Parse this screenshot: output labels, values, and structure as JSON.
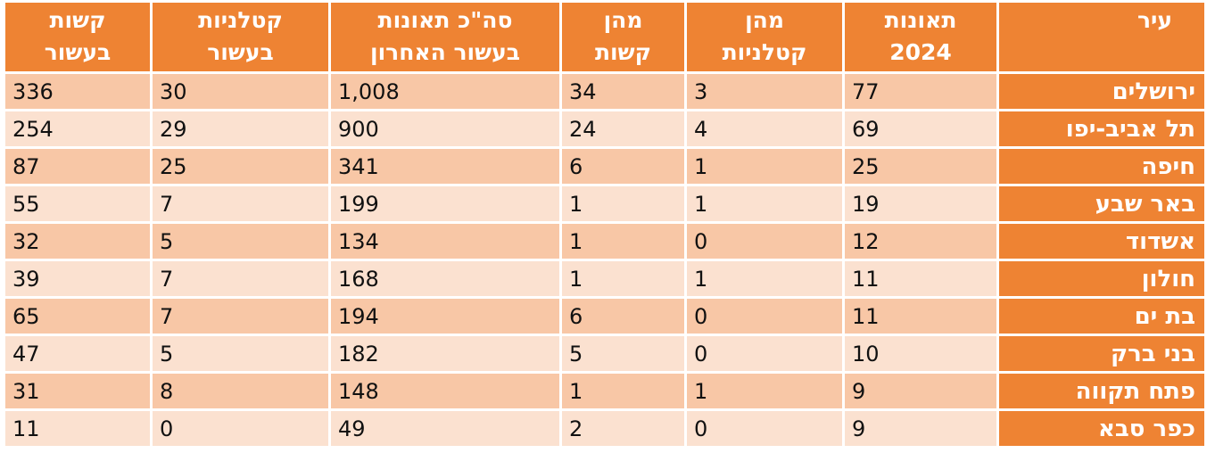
{
  "headers": [
    [
      "עיר",
      ""
    ],
    [
      "תאונות",
      "2024"
    ],
    [
      "מהן",
      "קטלניות"
    ],
    [
      "מהן",
      "קשות"
    ],
    [
      "סה\"כ תאונות",
      "בעשור האחרון"
    ],
    [
      "קטלניות",
      "בעשור"
    ],
    [
      "קשות",
      "בעשור"
    ]
  ],
  "rows": [
    [
      "ירושלים",
      "77",
      "3",
      "34",
      "1,008",
      "30",
      "336"
    ],
    [
      "תל אביב-יפו",
      "69",
      "4",
      "24",
      "900",
      "29",
      "254"
    ],
    [
      "חיפה",
      "25",
      "1",
      "6",
      "341",
      "25",
      "87"
    ],
    [
      "באר שבע",
      "19",
      "1",
      "1",
      "199",
      "7",
      "55"
    ],
    [
      "אשדוד",
      "12",
      "0",
      "1",
      "134",
      "5",
      "32"
    ],
    [
      "חולון",
      "11",
      "1",
      "1",
      "168",
      "7",
      "39"
    ],
    [
      "בת ים",
      "11",
      "0",
      "6",
      "194",
      "7",
      "65"
    ],
    [
      "בני ברק",
      "10",
      "0",
      "5",
      "182",
      "5",
      "47"
    ],
    [
      "פתח תקווה",
      "9",
      "1",
      "1",
      "148",
      "8",
      "31"
    ],
    [
      "כפר סבא",
      "9",
      "0",
      "2",
      "49",
      "0",
      "11"
    ]
  ],
  "colors": {
    "header": "#ee8333",
    "row_dark": "#f8c7a6",
    "row_light": "#fbe1d0",
    "header_text": "#ffffff"
  }
}
